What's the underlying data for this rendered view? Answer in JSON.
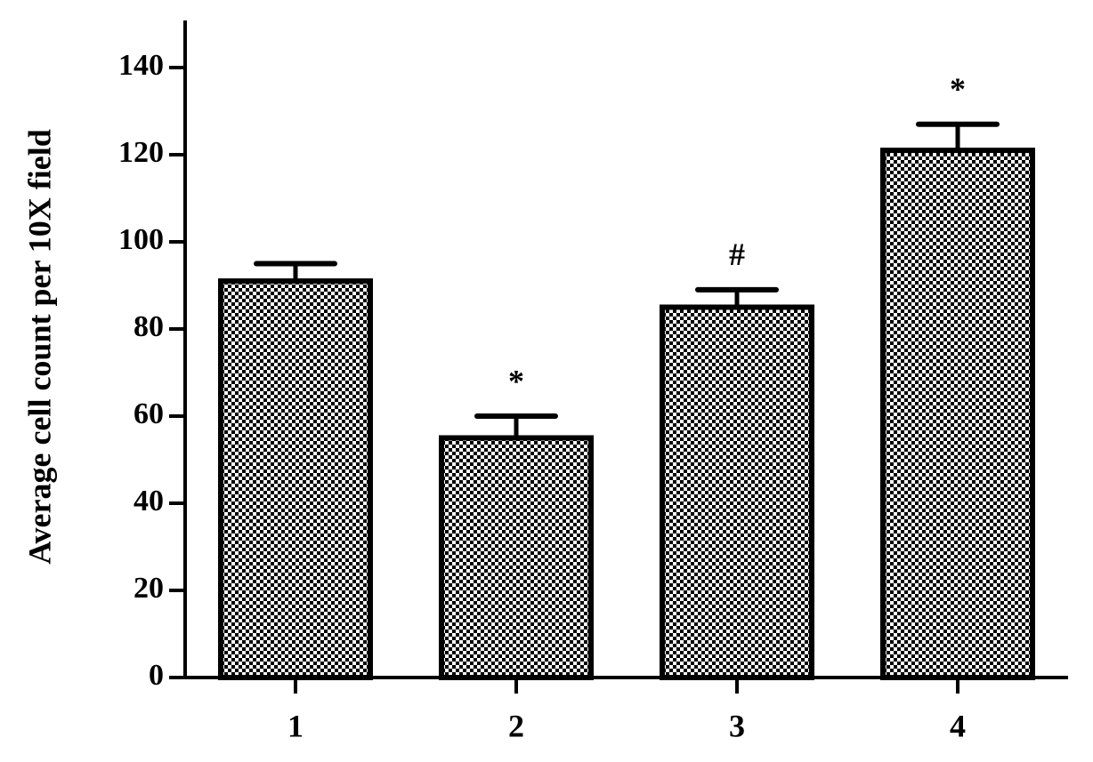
{
  "chart_data": {
    "type": "bar",
    "y_label": "Average cell count per 10X field",
    "categories": [
      "1",
      "2",
      "3",
      "4"
    ],
    "values": [
      91,
      55,
      85,
      121
    ],
    "errors": [
      4,
      5,
      4,
      6
    ],
    "annotations": [
      null,
      "*",
      "#",
      "*"
    ],
    "color": "#000000",
    "ylim": [
      0,
      150
    ],
    "yticks": [
      0,
      20,
      40,
      60,
      80,
      100,
      120,
      140
    ],
    "grid": false
  }
}
